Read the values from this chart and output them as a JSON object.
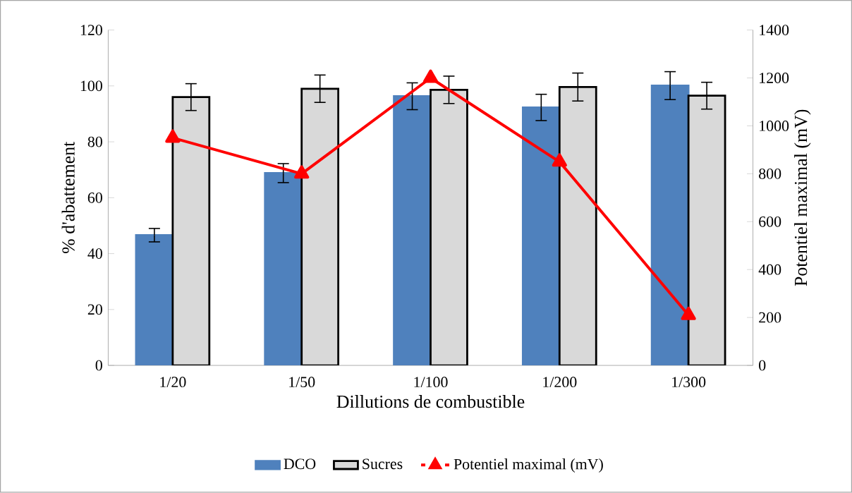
{
  "chart_data": {
    "type": "bar",
    "xlabel": "Dillutions de combustible",
    "ylabel": "% d'abattement",
    "y2label": "Potentiel maximal (mV)",
    "categories": [
      "1/20",
      "1/50",
      "1/100",
      "1/200",
      "1/300"
    ],
    "series": [
      {
        "name": "DCO",
        "color": "#4f81bd",
        "values": [
          46.6,
          68.8,
          96.3,
          92.3,
          100.1
        ],
        "errors": [
          2.4,
          3.4,
          4.8,
          4.7,
          5
        ]
      },
      {
        "name": "Sucres",
        "color": "#d9d9d9",
        "values": [
          96,
          99,
          98.6,
          99.6,
          96.5
        ],
        "errors": [
          4.8,
          4.9,
          4.9,
          5,
          4.8
        ]
      },
      {
        "name": "Potentiel maximal (mV)",
        "type": "line",
        "axis": "y2",
        "color": "#ff0000",
        "marker": "triangle",
        "values": [
          950,
          800,
          1200,
          850,
          210
        ]
      }
    ],
    "ylim": [
      0,
      120
    ],
    "yticks": [
      0,
      20,
      40,
      60,
      80,
      100,
      120
    ],
    "y2lim": [
      0,
      1400
    ],
    "y2ticks": [
      0,
      200,
      400,
      600,
      800,
      1000,
      1200,
      1400
    ],
    "legend": "bottom"
  }
}
